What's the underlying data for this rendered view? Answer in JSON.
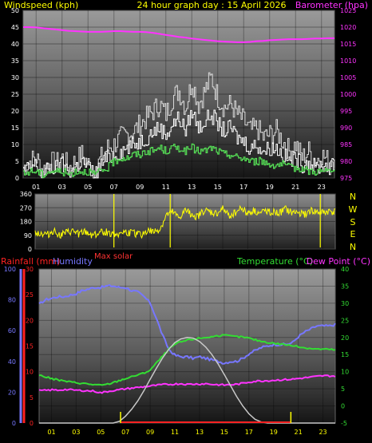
{
  "header": {
    "left_label": "Windspeed (kph)",
    "title": "24 hour graph day : 15 April 2026",
    "right_label": "Barometer (hpa)"
  },
  "wind_panel": {
    "compass_labels": [
      "N",
      "W",
      "S",
      "E",
      "N"
    ],
    "max_solar_label": "Max solar"
  },
  "bottom_panel": {
    "rain_label": "Rainfall (mm)",
    "humidity_label": "Humidity",
    "temp_label": "Temperature (°C)",
    "dew_label": "Dew Point (°C)"
  },
  "colors": {
    "windspeed": "#ffffff",
    "gust": "#d8d8d8",
    "average": "#55dd55",
    "barometer": "#ff33ff",
    "direction": "#ffff00",
    "temperature": "#33dd33",
    "dewpoint": "#ff33ff",
    "humidity": "#7777ff",
    "solar": "#c8c8c8",
    "rainfall": "#ff2222"
  },
  "chart_data": [
    {
      "type": "line",
      "name": "wind-barometer",
      "x_ticks": [
        "01",
        "03",
        "05",
        "07",
        "09",
        "11",
        "13",
        "15",
        "17",
        "19",
        "21",
        "23"
      ],
      "ylabel": "Windspeed (kph)",
      "ylim": [
        0,
        50
      ],
      "y_ticks": [
        "0",
        "5",
        "10",
        "15",
        "20",
        "25",
        "30",
        "35",
        "40",
        "45",
        "50"
      ],
      "y2label": "Barometer (hpa)",
      "y2lim": [
        975,
        1025
      ],
      "y2_ticks": [
        "975",
        "980",
        "985",
        "990",
        "995",
        "1000",
        "1005",
        "1010",
        "1015",
        "1020",
        "1025"
      ],
      "hours": [
        0,
        0.5,
        1,
        1.5,
        2,
        2.5,
        3,
        3.5,
        4,
        4.5,
        5,
        5.5,
        6,
        6.5,
        7,
        7.5,
        8,
        8.5,
        9,
        9.5,
        10,
        10.5,
        11,
        11.5,
        12,
        12.5,
        13,
        13.5,
        14,
        14.5,
        15,
        15.5,
        16,
        16.5,
        17,
        17.5,
        18,
        18.5,
        19,
        19.5,
        20,
        20.5,
        21,
        21.5,
        22,
        22.5,
        23,
        23.5,
        24
      ],
      "series": [
        {
          "key": "gust",
          "values": [
            3,
            5,
            6,
            2,
            5,
            4,
            6,
            3,
            5,
            7,
            4,
            2,
            6,
            9,
            10,
            12,
            13,
            14,
            16,
            18,
            20,
            22,
            19,
            24,
            26,
            21,
            29,
            22,
            26,
            30,
            24,
            21,
            22,
            19,
            17,
            14,
            15,
            12,
            13,
            14,
            11,
            8,
            10,
            6,
            8,
            5,
            7,
            5,
            6
          ]
        },
        {
          "key": "windspeed",
          "values": [
            2,
            3,
            4,
            1,
            3,
            3,
            4,
            2,
            3,
            5,
            3,
            1,
            4,
            6,
            7,
            8,
            9,
            10,
            11,
            12,
            14,
            15,
            13,
            16,
            18,
            14,
            20,
            15,
            17,
            19,
            16,
            14,
            15,
            12,
            11,
            9,
            10,
            8,
            9,
            9,
            7,
            5,
            6,
            4,
            5,
            3,
            4,
            3,
            4
          ]
        },
        {
          "key": "average",
          "values": [
            1,
            2,
            2,
            1,
            2,
            2,
            2,
            1,
            2,
            2,
            2,
            1,
            2,
            3,
            5,
            6,
            6,
            7,
            7,
            8,
            8,
            9,
            8,
            9,
            9,
            8,
            9,
            8,
            8,
            9,
            8,
            7,
            7,
            6,
            6,
            5,
            5,
            5,
            4,
            4,
            4,
            3,
            3,
            3,
            2,
            2,
            2,
            2,
            2
          ]
        },
        {
          "key": "barometer",
          "axis": "right",
          "values": [
            1020,
            1020,
            1019.9,
            1019.7,
            1019.5,
            1019.3,
            1019.1,
            1018.9,
            1018.8,
            1018.7,
            1018.6,
            1018.6,
            1018.6,
            1018.7,
            1018.8,
            1018.8,
            1018.7,
            1018.6,
            1018.6,
            1018.5,
            1018.3,
            1018,
            1017.7,
            1017.4,
            1017.1,
            1016.9,
            1016.6,
            1016.4,
            1016.2,
            1016,
            1015.8,
            1015.7,
            1015.6,
            1015.5,
            1015.5,
            1015.6,
            1015.8,
            1015.9,
            1016.1,
            1016.2,
            1016.3,
            1016.4,
            1016.4,
            1016.4,
            1016.5,
            1016.6,
            1016.6,
            1016.7,
            1016.7
          ]
        }
      ]
    },
    {
      "type": "line",
      "name": "wind-direction",
      "x_ticks": [
        "01",
        "03",
        "05",
        "07",
        "09",
        "11",
        "13",
        "15",
        "17",
        "19",
        "21",
        "23"
      ],
      "ylim": [
        0,
        360
      ],
      "y_ticks": [
        "0",
        "90",
        "180",
        "270",
        "360"
      ],
      "hours": [
        0,
        0.5,
        1,
        1.5,
        2,
        2.5,
        3,
        3.5,
        4,
        4.5,
        5,
        5.5,
        6,
        6.5,
        7,
        7.5,
        8,
        8.5,
        9,
        9.5,
        10,
        10.5,
        11,
        11.5,
        12,
        12.5,
        13,
        13.5,
        14,
        14.5,
        15,
        15.5,
        16,
        16.5,
        17,
        17.5,
        18,
        18.5,
        19,
        19.5,
        20,
        20.5,
        21,
        21.5,
        22,
        22.5,
        23,
        23.5,
        24
      ],
      "series": [
        {
          "key": "direction",
          "values": [
            110,
            100,
            95,
            120,
            90,
            105,
            115,
            100,
            110,
            95,
            100,
            115,
            105,
            100,
            110,
            105,
            100,
            95,
            120,
            110,
            130,
            220,
            240,
            200,
            250,
            230,
            210,
            250,
            240,
            230,
            260,
            220,
            240,
            270,
            235,
            250,
            230,
            255,
            240,
            230,
            260,
            235,
            240,
            225,
            250,
            240,
            235,
            245,
            240
          ]
        }
      ],
      "markers": [
        {
          "key": "max_solar",
          "hour": 13.1
        }
      ]
    },
    {
      "type": "line",
      "name": "temperature-humidity",
      "x_ticks": [
        "01",
        "03",
        "05",
        "07",
        "09",
        "11",
        "13",
        "15",
        "17",
        "19",
        "21",
        "23"
      ],
      "left_axes": [
        {
          "key": "humidity",
          "ylim": [
            0,
            100
          ],
          "ticks": [
            "0",
            "20",
            "40",
            "60",
            "80",
            "100"
          ]
        },
        {
          "key": "rainfall",
          "ylim": [
            0,
            30
          ],
          "ticks": [
            "0",
            "5",
            "10",
            "15",
            "20",
            "25",
            "30"
          ]
        }
      ],
      "ylim": [
        -5,
        40
      ],
      "y_ticks": [
        "-5",
        "0",
        "5",
        "10",
        "15",
        "20",
        "25",
        "30",
        "35",
        "40"
      ],
      "hours": [
        0,
        0.5,
        1,
        1.5,
        2,
        2.5,
        3,
        3.5,
        4,
        4.5,
        5,
        5.5,
        6,
        6.5,
        7,
        7.5,
        8,
        8.5,
        9,
        9.5,
        10,
        10.5,
        11,
        11.5,
        12,
        12.5,
        13,
        13.5,
        14,
        14.5,
        15,
        15.5,
        16,
        16.5,
        17,
        17.5,
        18,
        18.5,
        19,
        19.5,
        20,
        20.5,
        21,
        21.5,
        22,
        22.5,
        23,
        23.5,
        24
      ],
      "series": [
        {
          "key": "humidity",
          "axis": "humidity",
          "values": [
            77,
            80,
            81,
            82,
            82,
            83,
            84,
            86,
            87,
            88,
            88,
            89,
            89,
            88,
            88,
            86,
            85,
            82,
            78,
            68,
            57,
            48,
            44,
            43,
            43,
            42,
            43,
            42,
            41,
            40,
            39,
            40,
            40,
            42,
            45,
            47,
            49,
            50,
            51,
            51,
            51,
            52,
            56,
            59,
            61,
            63,
            63,
            63,
            64
          ]
        },
        {
          "key": "temperature",
          "axis": "right",
          "values": [
            9,
            8.5,
            8,
            7.6,
            7.3,
            7,
            6.8,
            6.6,
            6.4,
            6.2,
            6,
            6.3,
            6.8,
            7.4,
            8,
            8.5,
            9.1,
            9.6,
            10.5,
            12.5,
            14.5,
            16.5,
            18,
            18.7,
            19.2,
            19.5,
            19.8,
            20,
            20.2,
            20.5,
            20.6,
            20.4,
            20.2,
            20.1,
            19.8,
            19.3,
            18.9,
            18.6,
            18.3,
            18.1,
            17.9,
            17.6,
            17.3,
            17,
            16.8,
            16.6,
            16.6,
            16.5,
            16.4
          ]
        },
        {
          "key": "dewpoint",
          "axis": "right",
          "values": [
            4.5,
            4.5,
            4.7,
            4.6,
            4.8,
            4.7,
            4.6,
            4.5,
            4.4,
            4.3,
            3.8,
            4.2,
            4.5,
            4.7,
            5,
            5.2,
            5.4,
            5.6,
            5.8,
            6,
            6.2,
            6.3,
            6.4,
            6.5,
            6.3,
            6.4,
            6.4,
            6.5,
            6.3,
            6.2,
            6.1,
            6.2,
            6.3,
            6.6,
            7,
            7.2,
            7.3,
            7.4,
            7.5,
            7.6,
            7.7,
            7.8,
            8,
            8.2,
            8.4,
            8.6,
            8.8,
            8.8,
            8.7
          ]
        },
        {
          "key": "solar",
          "axis": "right",
          "values": [
            -5,
            -5,
            -5,
            -5,
            -5,
            -5,
            -5,
            -5,
            -5,
            -5,
            -5,
            -5,
            -5,
            -4.5,
            -3,
            -1,
            1.5,
            4.5,
            7.8,
            11,
            14,
            16.5,
            18.5,
            19.6,
            20,
            19.8,
            18.8,
            17.2,
            15,
            12.3,
            9.2,
            6,
            2.8,
            0,
            -2.3,
            -3.9,
            -4.7,
            -5,
            -5,
            -5,
            -5,
            -5,
            -5,
            -5,
            -5,
            -5,
            -5,
            -5,
            -5
          ]
        }
      ],
      "markers": [
        {
          "key": "sunrise",
          "hour": 6.6
        },
        {
          "key": "sunset",
          "hour": 20.4
        }
      ]
    }
  ]
}
